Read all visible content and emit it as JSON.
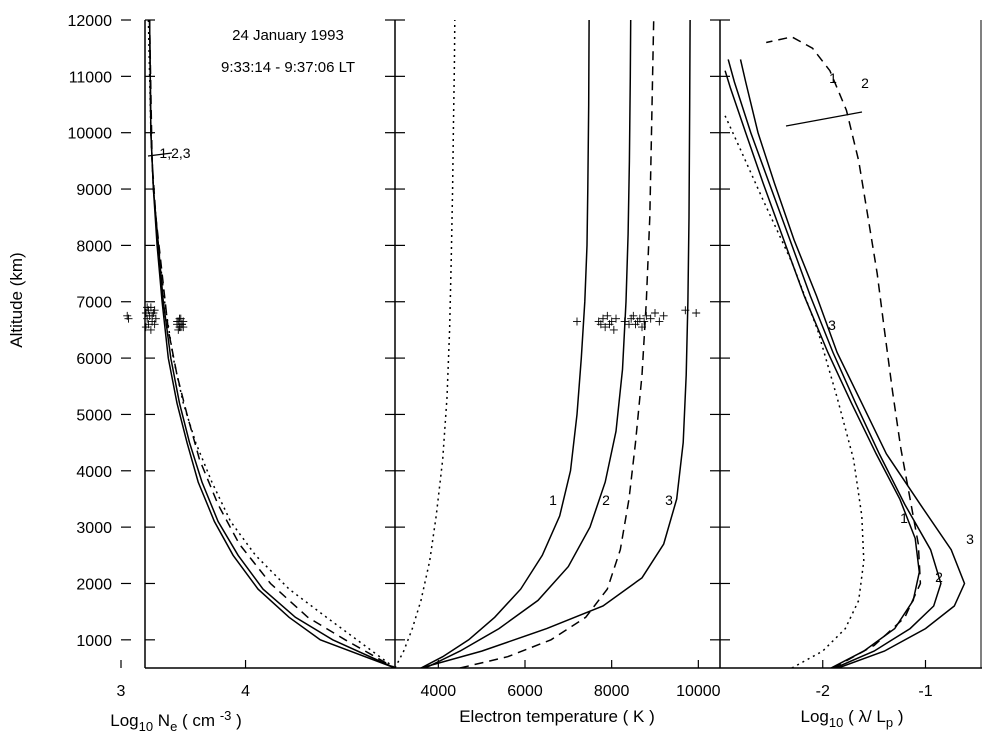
{
  "annotation": {
    "date": "24 January 1993",
    "time": "9:33:14 - 9:37:06 LT"
  },
  "y_axis": {
    "label": "Altitude (km)",
    "range": [
      500,
      12000
    ],
    "ticks": [
      1000,
      2000,
      3000,
      4000,
      5000,
      6000,
      7000,
      8000,
      9000,
      10000,
      11000,
      12000
    ]
  },
  "chart_data": [
    {
      "type": "line",
      "panel": "density",
      "xlabel_parts": {
        "a": "Log",
        "b": "10",
        "c": " N",
        "d": "e",
        "e": "  ( cm ",
        "f": "-3",
        "g": " )"
      },
      "xlim": [
        3,
        5.2
      ],
      "xticks": [
        3,
        4
      ],
      "series": [
        {
          "name": "1,2,3",
          "style": "solid",
          "x": [
            3.23,
            3.24,
            3.26,
            3.29,
            3.33,
            3.38,
            3.45,
            3.53,
            3.62,
            3.75,
            3.9,
            4.1,
            4.35,
            4.6,
            5.2
          ],
          "y": [
            12000,
            10000,
            9000,
            8000,
            7000,
            6000,
            5200,
            4500,
            3800,
            3100,
            2500,
            1900,
            1400,
            1000,
            500
          ]
        },
        {
          "style": "solid",
          "x": [
            3.23,
            3.24,
            3.26,
            3.3,
            3.34,
            3.4,
            3.47,
            3.55,
            3.65,
            3.78,
            3.94,
            4.14,
            4.4,
            4.7,
            5.2
          ],
          "y": [
            12000,
            10000,
            9000,
            8000,
            7000,
            6000,
            5200,
            4500,
            3800,
            3100,
            2500,
            1900,
            1400,
            1000,
            500
          ]
        },
        {
          "style": "dashed",
          "x": [
            3.23,
            3.25,
            3.28,
            3.33,
            3.38,
            3.45,
            3.53,
            3.63,
            3.78,
            3.95,
            4.2,
            4.5,
            4.8,
            5.2
          ],
          "y": [
            12000,
            9500,
            8500,
            7500,
            6500,
            5700,
            5000,
            4200,
            3400,
            2700,
            2000,
            1400,
            1000,
            500
          ]
        },
        {
          "style": "dotted",
          "x": [
            3.22,
            3.24,
            3.26,
            3.3,
            3.35,
            3.42,
            3.5,
            3.6,
            3.73,
            3.88,
            4.08,
            4.35,
            4.65,
            5.2
          ],
          "y": [
            12000,
            10000,
            9000,
            8000,
            7000,
            6000,
            5200,
            4500,
            3800,
            3100,
            2500,
            1900,
            1400,
            500
          ]
        }
      ],
      "observations": {
        "x": [
          3.05,
          3.06,
          3.2,
          3.21,
          3.22,
          3.23,
          3.24,
          3.25,
          3.26,
          3.27,
          3.28,
          3.2,
          3.22,
          3.25,
          3.27,
          3.24,
          3.21,
          3.45,
          3.46,
          3.47,
          3.48,
          3.49,
          3.5,
          3.46,
          3.48,
          3.47,
          3.49,
          3.5,
          3.45
        ],
        "y": [
          6750,
          6700,
          6800,
          6700,
          6850,
          6750,
          6900,
          6650,
          6800,
          6600,
          6700,
          6550,
          6600,
          6750,
          6850,
          6500,
          6900,
          6600,
          6650,
          6550,
          6700,
          6600,
          6650,
          6500,
          6550,
          6700,
          6600,
          6550,
          6650
        ]
      }
    },
    {
      "type": "line",
      "panel": "temperature",
      "xlabel": "Electron temperature ( K )",
      "xlim": [
        3000,
        10500
      ],
      "xticks": [
        4000,
        6000,
        8000,
        10000
      ],
      "series": [
        {
          "name": "1",
          "style": "solid",
          "x": [
            3600,
            4100,
            4700,
            5300,
            5900,
            6400,
            6800,
            7050,
            7200,
            7300,
            7380,
            7430,
            7450,
            7470,
            7480
          ],
          "y": [
            500,
            700,
            1000,
            1400,
            1900,
            2500,
            3200,
            4000,
            5000,
            6000,
            7000,
            8000,
            9000,
            10500,
            12000
          ]
        },
        {
          "name": "2",
          "style": "solid",
          "x": [
            3700,
            4500,
            5400,
            6300,
            7000,
            7500,
            7850,
            8100,
            8250,
            8330,
            8380,
            8410,
            8430,
            8440
          ],
          "y": [
            500,
            800,
            1200,
            1700,
            2300,
            3000,
            3800,
            4700,
            5800,
            7000,
            8200,
            9500,
            11000,
            12000
          ]
        },
        {
          "name": "3",
          "style": "solid",
          "x": [
            3600,
            5000,
            6500,
            7800,
            8700,
            9200,
            9500,
            9650,
            9720,
            9760,
            9785,
            9800,
            9810
          ],
          "y": [
            500,
            800,
            1200,
            1600,
            2100,
            2700,
            3500,
            4500,
            5700,
            7000,
            8500,
            10500,
            12000
          ]
        },
        {
          "style": "dashed",
          "x": [
            4500,
            5600,
            6600,
            7400,
            7900,
            8200,
            8400,
            8550,
            8700,
            8800,
            8880,
            8920,
            8950,
            8970
          ],
          "y": [
            500,
            700,
            1000,
            1400,
            1900,
            2600,
            3500,
            4500,
            5700,
            7000,
            8500,
            10000,
            11200,
            12000
          ]
        },
        {
          "style": "dotted",
          "x": [
            3000,
            3200,
            3400,
            3600,
            3800,
            3950,
            4100,
            4200,
            4260,
            4300,
            4330,
            4350,
            4370,
            4380
          ],
          "y": [
            500,
            800,
            1200,
            1700,
            2400,
            3200,
            4200,
            5300,
            6500,
            7800,
            9000,
            10200,
            11200,
            12000
          ]
        }
      ],
      "observations": {
        "x": [
          7200,
          7700,
          7750,
          7800,
          7850,
          7900,
          7950,
          8000,
          8050,
          8100,
          8300,
          8400,
          8450,
          8500,
          8550,
          8600,
          8650,
          8700,
          8750,
          8800,
          8900,
          9000,
          9100,
          9200,
          9700,
          9950
        ],
        "y": [
          6650,
          6650,
          6600,
          6700,
          6550,
          6750,
          6600,
          6650,
          6500,
          6700,
          6650,
          6600,
          6700,
          6750,
          6600,
          6650,
          6700,
          6550,
          6650,
          6750,
          6700,
          6800,
          6650,
          6750,
          6850,
          6800
        ]
      }
    },
    {
      "type": "line",
      "panel": "lambda",
      "xlabel_parts": {
        "a": "Log",
        "b": "10",
        "c": " ( λ/ L",
        "d": "p",
        "e": " )"
      },
      "xlim": [
        -3.0,
        -0.45
      ],
      "xticks": [
        -2,
        -1
      ],
      "series": [
        {
          "name": "1",
          "style": "solid",
          "x": [
            -1.92,
            -1.6,
            -1.3,
            -1.12,
            -1.06,
            -1.1,
            -1.25,
            -1.48,
            -1.72,
            -1.95,
            -2.18,
            -2.38,
            -2.58,
            -2.75,
            -2.9,
            -2.95
          ],
          "y": [
            500,
            800,
            1200,
            1700,
            2200,
            2800,
            3500,
            4300,
            5200,
            6100,
            7100,
            8100,
            9100,
            10000,
            10800,
            11100
          ]
        },
        {
          "name": "2",
          "style": "solid",
          "x": [
            -1.88,
            -1.5,
            -1.15,
            -0.92,
            -0.85,
            -0.95,
            -1.2,
            -1.45,
            -1.68,
            -1.9,
            -2.12,
            -2.32,
            -2.52,
            -2.7,
            -2.86,
            -2.92
          ],
          "y": [
            500,
            800,
            1200,
            1600,
            2000,
            2600,
            3400,
            4300,
            5200,
            6100,
            7100,
            8100,
            9100,
            10000,
            10900,
            11300
          ]
        },
        {
          "name": "3",
          "style": "solid",
          "x": [
            -1.85,
            -1.4,
            -1.0,
            -0.72,
            -0.62,
            -0.75,
            -1.05,
            -1.38,
            -1.62,
            -1.86,
            -2.06,
            -2.28,
            -2.47,
            -2.63,
            -2.75,
            -2.8
          ],
          "y": [
            500,
            800,
            1200,
            1600,
            2000,
            2600,
            3400,
            4300,
            5200,
            6100,
            7100,
            8100,
            9100,
            10000,
            10900,
            11300
          ]
        },
        {
          "style": "dashed",
          "x": [
            -1.9,
            -1.5,
            -1.2,
            -1.05,
            -1.07,
            -1.15,
            -1.24,
            -1.32,
            -1.4,
            -1.47,
            -1.56,
            -1.65,
            -1.77,
            -1.93,
            -2.1,
            -2.3,
            -2.55
          ],
          "y": [
            500,
            900,
            1400,
            2000,
            2700,
            3500,
            4400,
            5400,
            6500,
            7500,
            8500,
            9500,
            10400,
            11100,
            11500,
            11700,
            11600
          ]
        },
        {
          "style": "dotted",
          "x": [
            -2.3,
            -2.0,
            -1.78,
            -1.65,
            -1.6,
            -1.62,
            -1.7,
            -1.86,
            -2.05,
            -2.3,
            -2.58,
            -2.8,
            -2.95
          ],
          "y": [
            500,
            800,
            1200,
            1700,
            2400,
            3200,
            4200,
            5300,
            6500,
            7700,
            8800,
            9700,
            10300
          ]
        }
      ]
    }
  ]
}
